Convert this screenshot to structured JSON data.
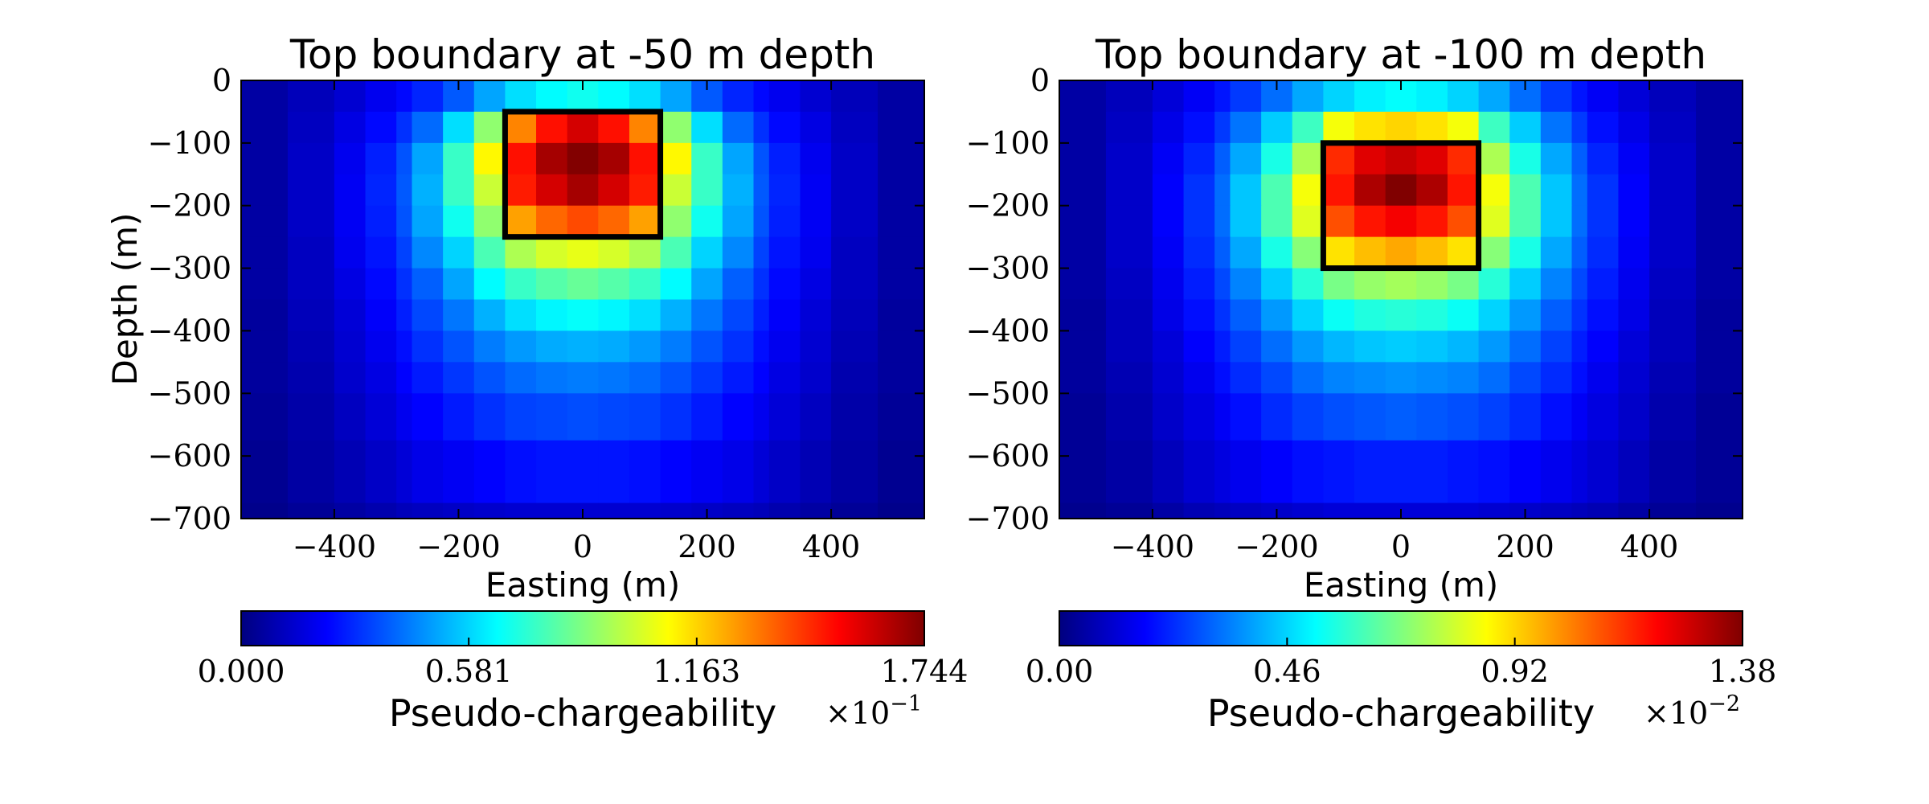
{
  "chart_data": [
    {
      "type": "heatmap",
      "title": "Top boundary at -50 m depth",
      "xlabel": "Easting (m)",
      "ylabel": "Depth (m)",
      "xlim": [
        -550,
        550
      ],
      "ylim": [
        -700,
        0
      ],
      "xticks": [
        -400,
        -200,
        0,
        200,
        400
      ],
      "xtick_labels": [
        "−400",
        "−200",
        "0",
        "200",
        "400"
      ],
      "yticks": [
        0,
        -100,
        -200,
        -300,
        -400,
        -500,
        -600,
        -700
      ],
      "ytick_labels": [
        "0",
        "−100",
        "−200",
        "−300",
        "−400",
        "−500",
        "−600",
        "−700"
      ],
      "colormap": "jet",
      "grid": false,
      "cell_edges_x": [
        -550,
        -475,
        -400,
        -350,
        -300,
        -275,
        -225,
        -175,
        -125,
        -75,
        -25,
        25,
        75,
        125,
        175,
        225,
        275,
        300,
        350,
        400,
        475,
        550
      ],
      "cell_edges_y": [
        0,
        -50,
        -100,
        -150,
        -200,
        -250,
        -300,
        -350,
        -400,
        -450,
        -500,
        -575,
        -675,
        -700
      ],
      "values": [
        [
          0.006,
          0.01,
          0.014,
          0.019,
          0.023,
          0.028,
          0.037,
          0.05,
          0.06,
          0.065,
          0.068,
          0.065,
          0.06,
          0.05,
          0.037,
          0.028,
          0.023,
          0.019,
          0.014,
          0.01,
          0.006
        ],
        [
          0.006,
          0.011,
          0.017,
          0.023,
          0.03,
          0.04,
          0.06,
          0.09,
          0.13,
          0.15,
          0.16,
          0.15,
          0.13,
          0.09,
          0.06,
          0.04,
          0.03,
          0.023,
          0.017,
          0.011,
          0.006
        ],
        [
          0.006,
          0.012,
          0.019,
          0.027,
          0.036,
          0.05,
          0.075,
          0.11,
          0.15,
          0.168,
          0.174,
          0.168,
          0.15,
          0.11,
          0.075,
          0.05,
          0.036,
          0.027,
          0.019,
          0.012,
          0.006
        ],
        [
          0.006,
          0.012,
          0.02,
          0.028,
          0.037,
          0.052,
          0.075,
          0.1,
          0.148,
          0.16,
          0.168,
          0.16,
          0.148,
          0.1,
          0.075,
          0.052,
          0.037,
          0.028,
          0.02,
          0.012,
          0.006
        ],
        [
          0.006,
          0.012,
          0.02,
          0.027,
          0.036,
          0.05,
          0.068,
          0.09,
          0.125,
          0.135,
          0.14,
          0.135,
          0.125,
          0.09,
          0.068,
          0.05,
          0.036,
          0.027,
          0.02,
          0.012,
          0.006
        ],
        [
          0.006,
          0.011,
          0.019,
          0.025,
          0.033,
          0.045,
          0.058,
          0.078,
          0.095,
          0.102,
          0.105,
          0.102,
          0.095,
          0.078,
          0.058,
          0.045,
          0.033,
          0.025,
          0.019,
          0.011,
          0.006
        ],
        [
          0.006,
          0.011,
          0.017,
          0.023,
          0.03,
          0.038,
          0.05,
          0.065,
          0.075,
          0.08,
          0.083,
          0.08,
          0.075,
          0.065,
          0.05,
          0.038,
          0.03,
          0.023,
          0.017,
          0.011,
          0.006
        ],
        [
          0.005,
          0.01,
          0.015,
          0.021,
          0.027,
          0.034,
          0.042,
          0.052,
          0.06,
          0.064,
          0.066,
          0.064,
          0.06,
          0.052,
          0.042,
          0.034,
          0.027,
          0.021,
          0.015,
          0.01,
          0.005
        ],
        [
          0.005,
          0.009,
          0.014,
          0.019,
          0.024,
          0.03,
          0.036,
          0.043,
          0.048,
          0.051,
          0.052,
          0.051,
          0.048,
          0.043,
          0.036,
          0.03,
          0.024,
          0.019,
          0.014,
          0.009,
          0.005
        ],
        [
          0.005,
          0.008,
          0.013,
          0.017,
          0.022,
          0.026,
          0.031,
          0.036,
          0.04,
          0.042,
          0.043,
          0.042,
          0.04,
          0.036,
          0.031,
          0.026,
          0.022,
          0.017,
          0.013,
          0.008,
          0.005
        ],
        [
          0.004,
          0.007,
          0.011,
          0.015,
          0.019,
          0.022,
          0.026,
          0.03,
          0.033,
          0.034,
          0.035,
          0.034,
          0.033,
          0.03,
          0.026,
          0.022,
          0.019,
          0.015,
          0.011,
          0.007,
          0.004
        ],
        [
          0.003,
          0.006,
          0.009,
          0.012,
          0.015,
          0.018,
          0.02,
          0.022,
          0.024,
          0.025,
          0.025,
          0.025,
          0.024,
          0.022,
          0.02,
          0.018,
          0.015,
          0.012,
          0.009,
          0.006,
          0.003
        ],
        [
          0.002,
          0.004,
          0.006,
          0.008,
          0.01,
          0.011,
          0.012,
          0.013,
          0.014,
          0.014,
          0.014,
          0.014,
          0.014,
          0.013,
          0.012,
          0.011,
          0.01,
          0.008,
          0.006,
          0.004,
          0.002
        ]
      ],
      "block": {
        "x": [
          -125,
          125
        ],
        "y": [
          -50,
          -250
        ]
      },
      "colorbar": {
        "min": 0,
        "max": 0.1744,
        "ticks": [
          0,
          0.0581,
          0.1163,
          0.1744
        ],
        "tick_labels": [
          "0.000",
          "0.581",
          "1.163",
          "1.744"
        ],
        "label": "Pseudo-chargeability",
        "multiplier": "×10",
        "exponent": "−1"
      }
    },
    {
      "type": "heatmap",
      "title": "Top boundary at -100 m depth",
      "xlabel": "Easting (m)",
      "ylabel": "",
      "xlim": [
        -550,
        550
      ],
      "ylim": [
        -700,
        0
      ],
      "xticks": [
        -400,
        -200,
        0,
        200,
        400
      ],
      "xtick_labels": [
        "−400",
        "−200",
        "0",
        "200",
        "400"
      ],
      "yticks": [
        0,
        -100,
        -200,
        -300,
        -400,
        -500,
        -600,
        -700
      ],
      "ytick_labels": [
        "0",
        "−100",
        "−200",
        "−300",
        "−400",
        "−500",
        "−600",
        "−700"
      ],
      "colormap": "jet",
      "grid": false,
      "cell_edges_x": [
        -550,
        -475,
        -400,
        -350,
        -300,
        -275,
        -225,
        -175,
        -125,
        -75,
        -25,
        25,
        75,
        125,
        175,
        225,
        275,
        300,
        350,
        400,
        475,
        550
      ],
      "cell_edges_y": [
        0,
        -50,
        -100,
        -150,
        -200,
        -250,
        -300,
        -350,
        -400,
        -450,
        -500,
        -575,
        -675,
        -700
      ],
      "values": [
        [
          0.0005,
          0.0008,
          0.0012,
          0.0016,
          0.002,
          0.0025,
          0.0032,
          0.004,
          0.0046,
          0.005,
          0.0052,
          0.005,
          0.0046,
          0.004,
          0.0032,
          0.0025,
          0.002,
          0.0016,
          0.0012,
          0.0008,
          0.0005
        ],
        [
          0.0005,
          0.0009,
          0.0014,
          0.0019,
          0.0025,
          0.0033,
          0.0045,
          0.006,
          0.0085,
          0.009,
          0.0092,
          0.009,
          0.0085,
          0.006,
          0.0045,
          0.0033,
          0.0025,
          0.0019,
          0.0014,
          0.0009,
          0.0005
        ],
        [
          0.0005,
          0.001,
          0.0016,
          0.0022,
          0.003,
          0.004,
          0.0055,
          0.0075,
          0.0115,
          0.0125,
          0.0128,
          0.0125,
          0.0115,
          0.0075,
          0.0055,
          0.004,
          0.003,
          0.0022,
          0.0016,
          0.001,
          0.0005
        ],
        [
          0.0005,
          0.001,
          0.0017,
          0.0024,
          0.0032,
          0.0044,
          0.0062,
          0.0085,
          0.0118,
          0.0132,
          0.0138,
          0.0132,
          0.0118,
          0.0085,
          0.0062,
          0.0044,
          0.0032,
          0.0024,
          0.0017,
          0.001,
          0.0005
        ],
        [
          0.0005,
          0.001,
          0.0017,
          0.0024,
          0.0032,
          0.0044,
          0.0062,
          0.0082,
          0.011,
          0.0118,
          0.0122,
          0.0118,
          0.011,
          0.0082,
          0.0062,
          0.0044,
          0.0032,
          0.0024,
          0.0017,
          0.001,
          0.0005
        ],
        [
          0.0005,
          0.001,
          0.0016,
          0.0023,
          0.003,
          0.004,
          0.0055,
          0.007,
          0.009,
          0.0095,
          0.0098,
          0.0095,
          0.009,
          0.007,
          0.0055,
          0.004,
          0.003,
          0.0023,
          0.0016,
          0.001,
          0.0005
        ],
        [
          0.0005,
          0.0009,
          0.0015,
          0.0021,
          0.0027,
          0.0035,
          0.0045,
          0.0057,
          0.0068,
          0.0072,
          0.0074,
          0.0072,
          0.0068,
          0.0057,
          0.0045,
          0.0035,
          0.0027,
          0.0021,
          0.0015,
          0.0009,
          0.0005
        ],
        [
          0.0004,
          0.0008,
          0.0014,
          0.0019,
          0.0024,
          0.003,
          0.0038,
          0.0046,
          0.0053,
          0.0056,
          0.0057,
          0.0056,
          0.0053,
          0.0046,
          0.0038,
          0.003,
          0.0024,
          0.0019,
          0.0014,
          0.0008,
          0.0004
        ],
        [
          0.0004,
          0.0008,
          0.0012,
          0.0017,
          0.0021,
          0.0026,
          0.0032,
          0.0038,
          0.0042,
          0.0044,
          0.0045,
          0.0044,
          0.0042,
          0.0038,
          0.0032,
          0.0026,
          0.0021,
          0.0017,
          0.0012,
          0.0008,
          0.0004
        ],
        [
          0.0004,
          0.0007,
          0.0011,
          0.0015,
          0.0019,
          0.0023,
          0.0027,
          0.0032,
          0.0035,
          0.0036,
          0.0037,
          0.0036,
          0.0035,
          0.0032,
          0.0027,
          0.0023,
          0.0019,
          0.0015,
          0.0011,
          0.0007,
          0.0004
        ],
        [
          0.0003,
          0.0006,
          0.001,
          0.0013,
          0.0016,
          0.0019,
          0.0023,
          0.0026,
          0.0028,
          0.0029,
          0.003,
          0.0029,
          0.0028,
          0.0026,
          0.0023,
          0.0019,
          0.0016,
          0.0013,
          0.001,
          0.0006,
          0.0003
        ],
        [
          0.0003,
          0.0005,
          0.0008,
          0.0011,
          0.0013,
          0.0015,
          0.0017,
          0.0019,
          0.002,
          0.0021,
          0.0021,
          0.0021,
          0.002,
          0.0019,
          0.0017,
          0.0015,
          0.0013,
          0.0011,
          0.0008,
          0.0005,
          0.0003
        ],
        [
          0.0002,
          0.0003,
          0.0005,
          0.0007,
          0.0008,
          0.0009,
          0.001,
          0.0011,
          0.0012,
          0.0012,
          0.0012,
          0.0012,
          0.0012,
          0.0011,
          0.001,
          0.0009,
          0.0008,
          0.0007,
          0.0005,
          0.0003,
          0.0002
        ]
      ],
      "block": {
        "x": [
          -125,
          125
        ],
        "y": [
          -100,
          -300
        ]
      },
      "colorbar": {
        "min": 0,
        "max": 0.0138,
        "ticks": [
          0,
          0.0046,
          0.0092,
          0.0138
        ],
        "tick_labels": [
          "0.00",
          "0.46",
          "0.92",
          "1.38"
        ],
        "label": "Pseudo-chargeability",
        "multiplier": "×10",
        "exponent": "−2"
      }
    }
  ]
}
